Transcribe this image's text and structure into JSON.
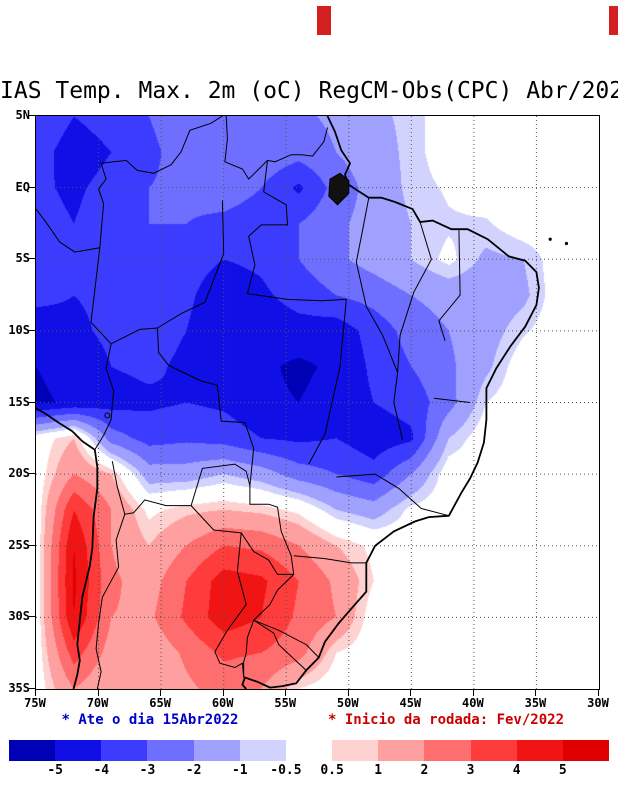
{
  "chart_data": {
    "type": "heatmap",
    "title": "IAS Temp. Max. 2m (oC) RegCM-Obs(CPC) Abr/202",
    "units": "oC",
    "projection": {
      "lon_range": [
        -75,
        -30
      ],
      "lat_range": [
        -35,
        5
      ]
    },
    "lat_ticks": [
      {
        "label": "5N",
        "value": 5
      },
      {
        "label": "EQ",
        "value": 0
      },
      {
        "label": "5S",
        "value": -5
      },
      {
        "label": "10S",
        "value": -10
      },
      {
        "label": "15S",
        "value": -15
      },
      {
        "label": "20S",
        "value": -20
      },
      {
        "label": "25S",
        "value": -25
      },
      {
        "label": "30S",
        "value": -30
      },
      {
        "label": "35S",
        "value": -35
      }
    ],
    "lon_ticks": [
      {
        "label": "75W",
        "value": -75
      },
      {
        "label": "70W",
        "value": -70
      },
      {
        "label": "65W",
        "value": -65
      },
      {
        "label": "60W",
        "value": -60
      },
      {
        "label": "55W",
        "value": -55
      },
      {
        "label": "50W",
        "value": -50
      },
      {
        "label": "45W",
        "value": -45
      },
      {
        "label": "40W",
        "value": -40
      },
      {
        "label": "35W",
        "value": -35
      },
      {
        "label": "30W",
        "value": -30
      }
    ],
    "levels": [
      -5,
      -4,
      -3,
      -2,
      -1,
      -0.5,
      0.5,
      1,
      2,
      3,
      4,
      5
    ],
    "colors": [
      "#0000b4",
      "#0f0fe6",
      "#3c3cff",
      "#6e6eff",
      "#a0a0ff",
      "#d2d2ff",
      "#ffffff",
      "#ffd2d2",
      "#ffa0a0",
      "#ff6e6e",
      "#ff3c3c",
      "#f01414",
      "#e00000"
    ],
    "lons": [
      -75,
      -72,
      -69,
      -66,
      -63,
      -60,
      -57,
      -54,
      -51,
      -48,
      -45,
      -42,
      -39,
      -36,
      -33,
      -30
    ],
    "lats": [
      5,
      2.5,
      0,
      -2.5,
      -5,
      -7.5,
      -10,
      -12.5,
      -15,
      -17.5,
      -20,
      -22.5,
      -25,
      -27.5,
      -30,
      -32.5,
      -35
    ],
    "grid_bias_values": [
      [
        -3.0,
        -4.0,
        -3.5,
        -3.0,
        -2.5,
        -2.2,
        -2.0,
        -2.2,
        -1.8,
        -1.2,
        -0.8,
        0,
        0,
        0,
        0,
        0
      ],
      [
        -3.5,
        -4.6,
        -4.0,
        -3.2,
        -2.6,
        -2.4,
        -2.2,
        -2.6,
        -2.0,
        -1.4,
        -0.8,
        0,
        0,
        0,
        0,
        0
      ],
      [
        -3.8,
        -4.2,
        -3.6,
        -3.0,
        -2.8,
        -2.6,
        -3.0,
        -4.2,
        -2.6,
        -1.6,
        -0.8,
        -0.4,
        0,
        0,
        0,
        0
      ],
      [
        -3.6,
        -4.0,
        -3.4,
        -3.0,
        -3.0,
        -3.2,
        -3.4,
        -3.0,
        -2.2,
        -1.6,
        -1.0,
        -0.6,
        -0.6,
        0,
        0,
        0
      ],
      [
        -3.6,
        -3.8,
        -3.4,
        -3.2,
        -3.6,
        -4.0,
        -3.8,
        -3.0,
        -2.2,
        -1.6,
        -1.0,
        -0.3,
        -1.2,
        -1.0,
        0,
        0
      ],
      [
        -3.8,
        -4.0,
        -3.8,
        -3.5,
        -3.8,
        -4.6,
        -4.2,
        -3.6,
        -3.0,
        -2.6,
        -2.0,
        -1.6,
        -1.6,
        -1.2,
        0,
        0
      ],
      [
        -4.4,
        -4.2,
        -3.8,
        -3.6,
        -4.0,
        -4.8,
        -4.6,
        -4.4,
        -4.6,
        -3.6,
        -2.6,
        -2.0,
        -1.4,
        -0.6,
        0,
        0
      ],
      [
        -5.0,
        -4.6,
        -4.0,
        -3.8,
        -4.2,
        -4.6,
        -4.8,
        -5.2,
        -4.8,
        -3.8,
        -3.0,
        -2.2,
        -1.2,
        0,
        0,
        0
      ],
      [
        -5.2,
        -4.8,
        -4.4,
        -4.2,
        -4.0,
        -4.2,
        -4.8,
        -5.0,
        -4.6,
        -4.0,
        -3.6,
        -2.4,
        -0.5,
        0,
        0,
        0
      ],
      [
        0,
        1.0,
        -2.5,
        -3.4,
        -3.2,
        -3.4,
        -4.0,
        -4.2,
        -4.0,
        -4.6,
        -4.2,
        -1.0,
        0,
        0,
        0,
        0
      ],
      [
        0,
        2.0,
        1.0,
        -1.5,
        -1.5,
        -1.0,
        -1.5,
        -2.5,
        -3.0,
        -3.6,
        -2.0,
        0,
        0,
        0,
        0,
        0
      ],
      [
        0,
        4.0,
        2.0,
        0.3,
        0.8,
        1.0,
        0.8,
        0.3,
        -1.0,
        -1.5,
        -0.3,
        0,
        0,
        0,
        0,
        0
      ],
      [
        0,
        5.0,
        2.0,
        1.0,
        2.0,
        3.0,
        2.8,
        2.0,
        1.0,
        0.3,
        0,
        0,
        0,
        0,
        0,
        0
      ],
      [
        0,
        5.2,
        2.2,
        1.5,
        3.0,
        4.5,
        4.2,
        3.0,
        1.8,
        0.5,
        0,
        0,
        0,
        0,
        0,
        0
      ],
      [
        0,
        5.0,
        2.0,
        1.8,
        3.2,
        4.6,
        4.0,
        2.8,
        2.0,
        0,
        0,
        0,
        0,
        0,
        0,
        0
      ],
      [
        0,
        3.5,
        1.5,
        1.2,
        2.2,
        3.2,
        3.0,
        2.4,
        0.5,
        0,
        0,
        0,
        0,
        0,
        0,
        0
      ],
      [
        0,
        2.0,
        1.0,
        1.0,
        1.8,
        2.4,
        2.0,
        0.5,
        0,
        0,
        0,
        0,
        0,
        0,
        0,
        0
      ]
    ]
  },
  "footnotes": {
    "left": {
      "text": "* Ate o dia 15Abr2022",
      "color": "#0000cc"
    },
    "right": {
      "text": "* Inicio da rodada: Fev/2022",
      "color": "#cc0000"
    }
  },
  "colorbar": {
    "labels": [
      "-5",
      "-4",
      "-3",
      "-2",
      "-1",
      "-0.5",
      "0.5",
      "1",
      "2",
      "3",
      "4",
      "5"
    ],
    "colors": [
      "#0000b4",
      "#0f0fe6",
      "#3c3cff",
      "#6e6eff",
      "#a0a0ff",
      "#d2d2ff",
      "#ffffff",
      "#ffd2d2",
      "#ffa0a0",
      "#ff6e6e",
      "#ff3c3c",
      "#f01414",
      "#e00000"
    ]
  }
}
